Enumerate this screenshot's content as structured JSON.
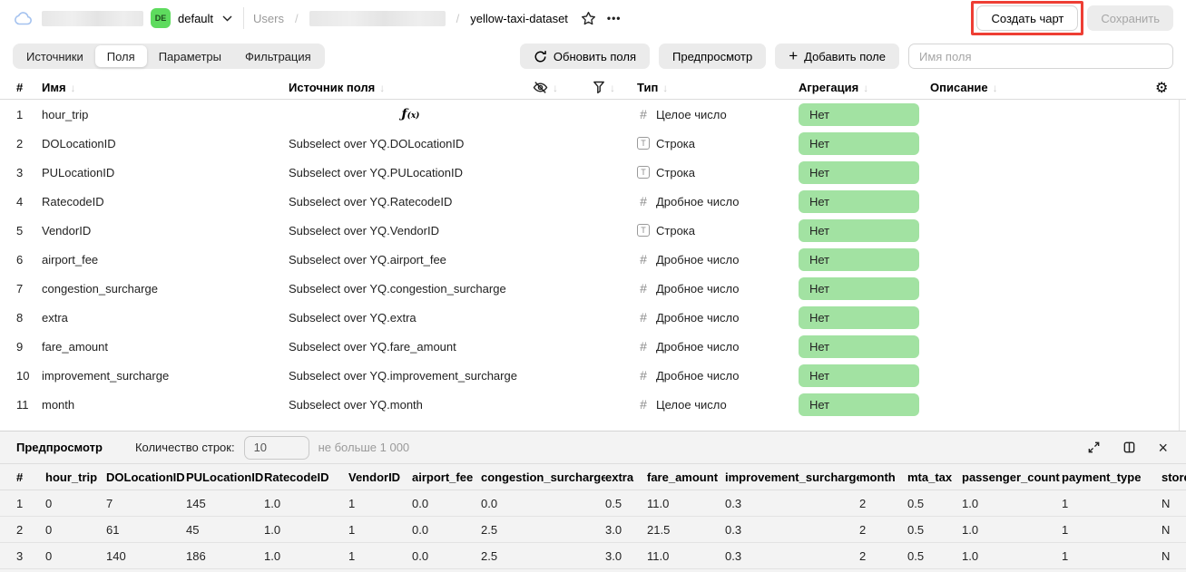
{
  "header": {
    "workspace": {
      "badge": "DE",
      "env": "default"
    },
    "breadcrumb": {
      "root": "Users",
      "sep": "/",
      "current": "yellow-taxi-dataset"
    },
    "more": "•••",
    "actions": {
      "create_chart": "Создать чарт",
      "save": "Сохранить"
    }
  },
  "tabs": {
    "sources": "Источники",
    "fields": "Поля",
    "parameters": "Параметры",
    "filtering": "Фильтрация"
  },
  "toolbar": {
    "refresh": "Обновить поля",
    "preview": "Предпросмотр",
    "plus": "+",
    "add_field": "Добавить поле",
    "name_placeholder": "Имя поля"
  },
  "fields_table": {
    "headers": {
      "index": "#",
      "name": "Имя",
      "source": "Источник поля",
      "type": "Тип",
      "aggregation": "Агрегация",
      "description": "Описание"
    },
    "sort_glyph": "↓",
    "rows": [
      {
        "n": "1",
        "name": "hour_trip",
        "source": "",
        "is_formula": true,
        "type_kind": "int",
        "type": "Целое число",
        "aggregation": "Нет"
      },
      {
        "n": "2",
        "name": "DOLocationID",
        "source": "Subselect over YQ.DOLocationID",
        "is_formula": false,
        "type_kind": "string",
        "type": "Строка",
        "aggregation": "Нет"
      },
      {
        "n": "3",
        "name": "PULocationID",
        "source": "Subselect over YQ.PULocationID",
        "is_formula": false,
        "type_kind": "string",
        "type": "Строка",
        "aggregation": "Нет"
      },
      {
        "n": "4",
        "name": "RatecodeID",
        "source": "Subselect over YQ.RatecodeID",
        "is_formula": false,
        "type_kind": "float",
        "type": "Дробное число",
        "aggregation": "Нет"
      },
      {
        "n": "5",
        "name": "VendorID",
        "source": "Subselect over YQ.VendorID",
        "is_formula": false,
        "type_kind": "string",
        "type": "Строка",
        "aggregation": "Нет"
      },
      {
        "n": "6",
        "name": "airport_fee",
        "source": "Subselect over YQ.airport_fee",
        "is_formula": false,
        "type_kind": "float",
        "type": "Дробное число",
        "aggregation": "Нет"
      },
      {
        "n": "7",
        "name": "congestion_surcharge",
        "source": "Subselect over YQ.congestion_surcharge",
        "is_formula": false,
        "type_kind": "float",
        "type": "Дробное число",
        "aggregation": "Нет"
      },
      {
        "n": "8",
        "name": "extra",
        "source": "Subselect over YQ.extra",
        "is_formula": false,
        "type_kind": "float",
        "type": "Дробное число",
        "aggregation": "Нет"
      },
      {
        "n": "9",
        "name": "fare_amount",
        "source": "Subselect over YQ.fare_amount",
        "is_formula": false,
        "type_kind": "float",
        "type": "Дробное число",
        "aggregation": "Нет"
      },
      {
        "n": "10",
        "name": "improvement_surcharge",
        "source": "Subselect over YQ.improvement_surcharge",
        "is_formula": false,
        "type_kind": "float",
        "type": "Дробное число",
        "aggregation": "Нет"
      },
      {
        "n": "11",
        "name": "month",
        "source": "Subselect over YQ.month",
        "is_formula": false,
        "type_kind": "int",
        "type": "Целое число",
        "aggregation": "Нет"
      }
    ]
  },
  "preview": {
    "title": "Предпросмотр",
    "rows_label": "Количество строк:",
    "rows_value": "10",
    "rows_hint": "не больше 1 000",
    "columns": [
      "#",
      "hour_trip",
      "DOLocationID",
      "PULocationID",
      "RatecodeID",
      "VendorID",
      "airport_fee",
      "congestion_surcharge",
      "extra",
      "fare_amount",
      "improvement_surcharge",
      "month",
      "mta_tax",
      "passenger_count",
      "payment_type",
      "store_an"
    ],
    "rows": [
      [
        "1",
        "0",
        "7",
        "145",
        "1.0",
        "1",
        "0.0",
        "0.0",
        "0.5",
        "11.0",
        "0.3",
        "2",
        "0.5",
        "1.0",
        "1",
        "N"
      ],
      [
        "2",
        "0",
        "61",
        "45",
        "1.0",
        "1",
        "0.0",
        "2.5",
        "3.0",
        "21.5",
        "0.3",
        "2",
        "0.5",
        "1.0",
        "1",
        "N"
      ],
      [
        "3",
        "0",
        "140",
        "186",
        "1.0",
        "1",
        "0.0",
        "2.5",
        "3.0",
        "11.0",
        "0.3",
        "2",
        "0.5",
        "1.0",
        "1",
        "N"
      ]
    ]
  },
  "colors": {
    "aggregation_badge": "#a2e2a2",
    "workspace_badge": "#5edb5e",
    "annotation_red": "#ee3e34"
  }
}
